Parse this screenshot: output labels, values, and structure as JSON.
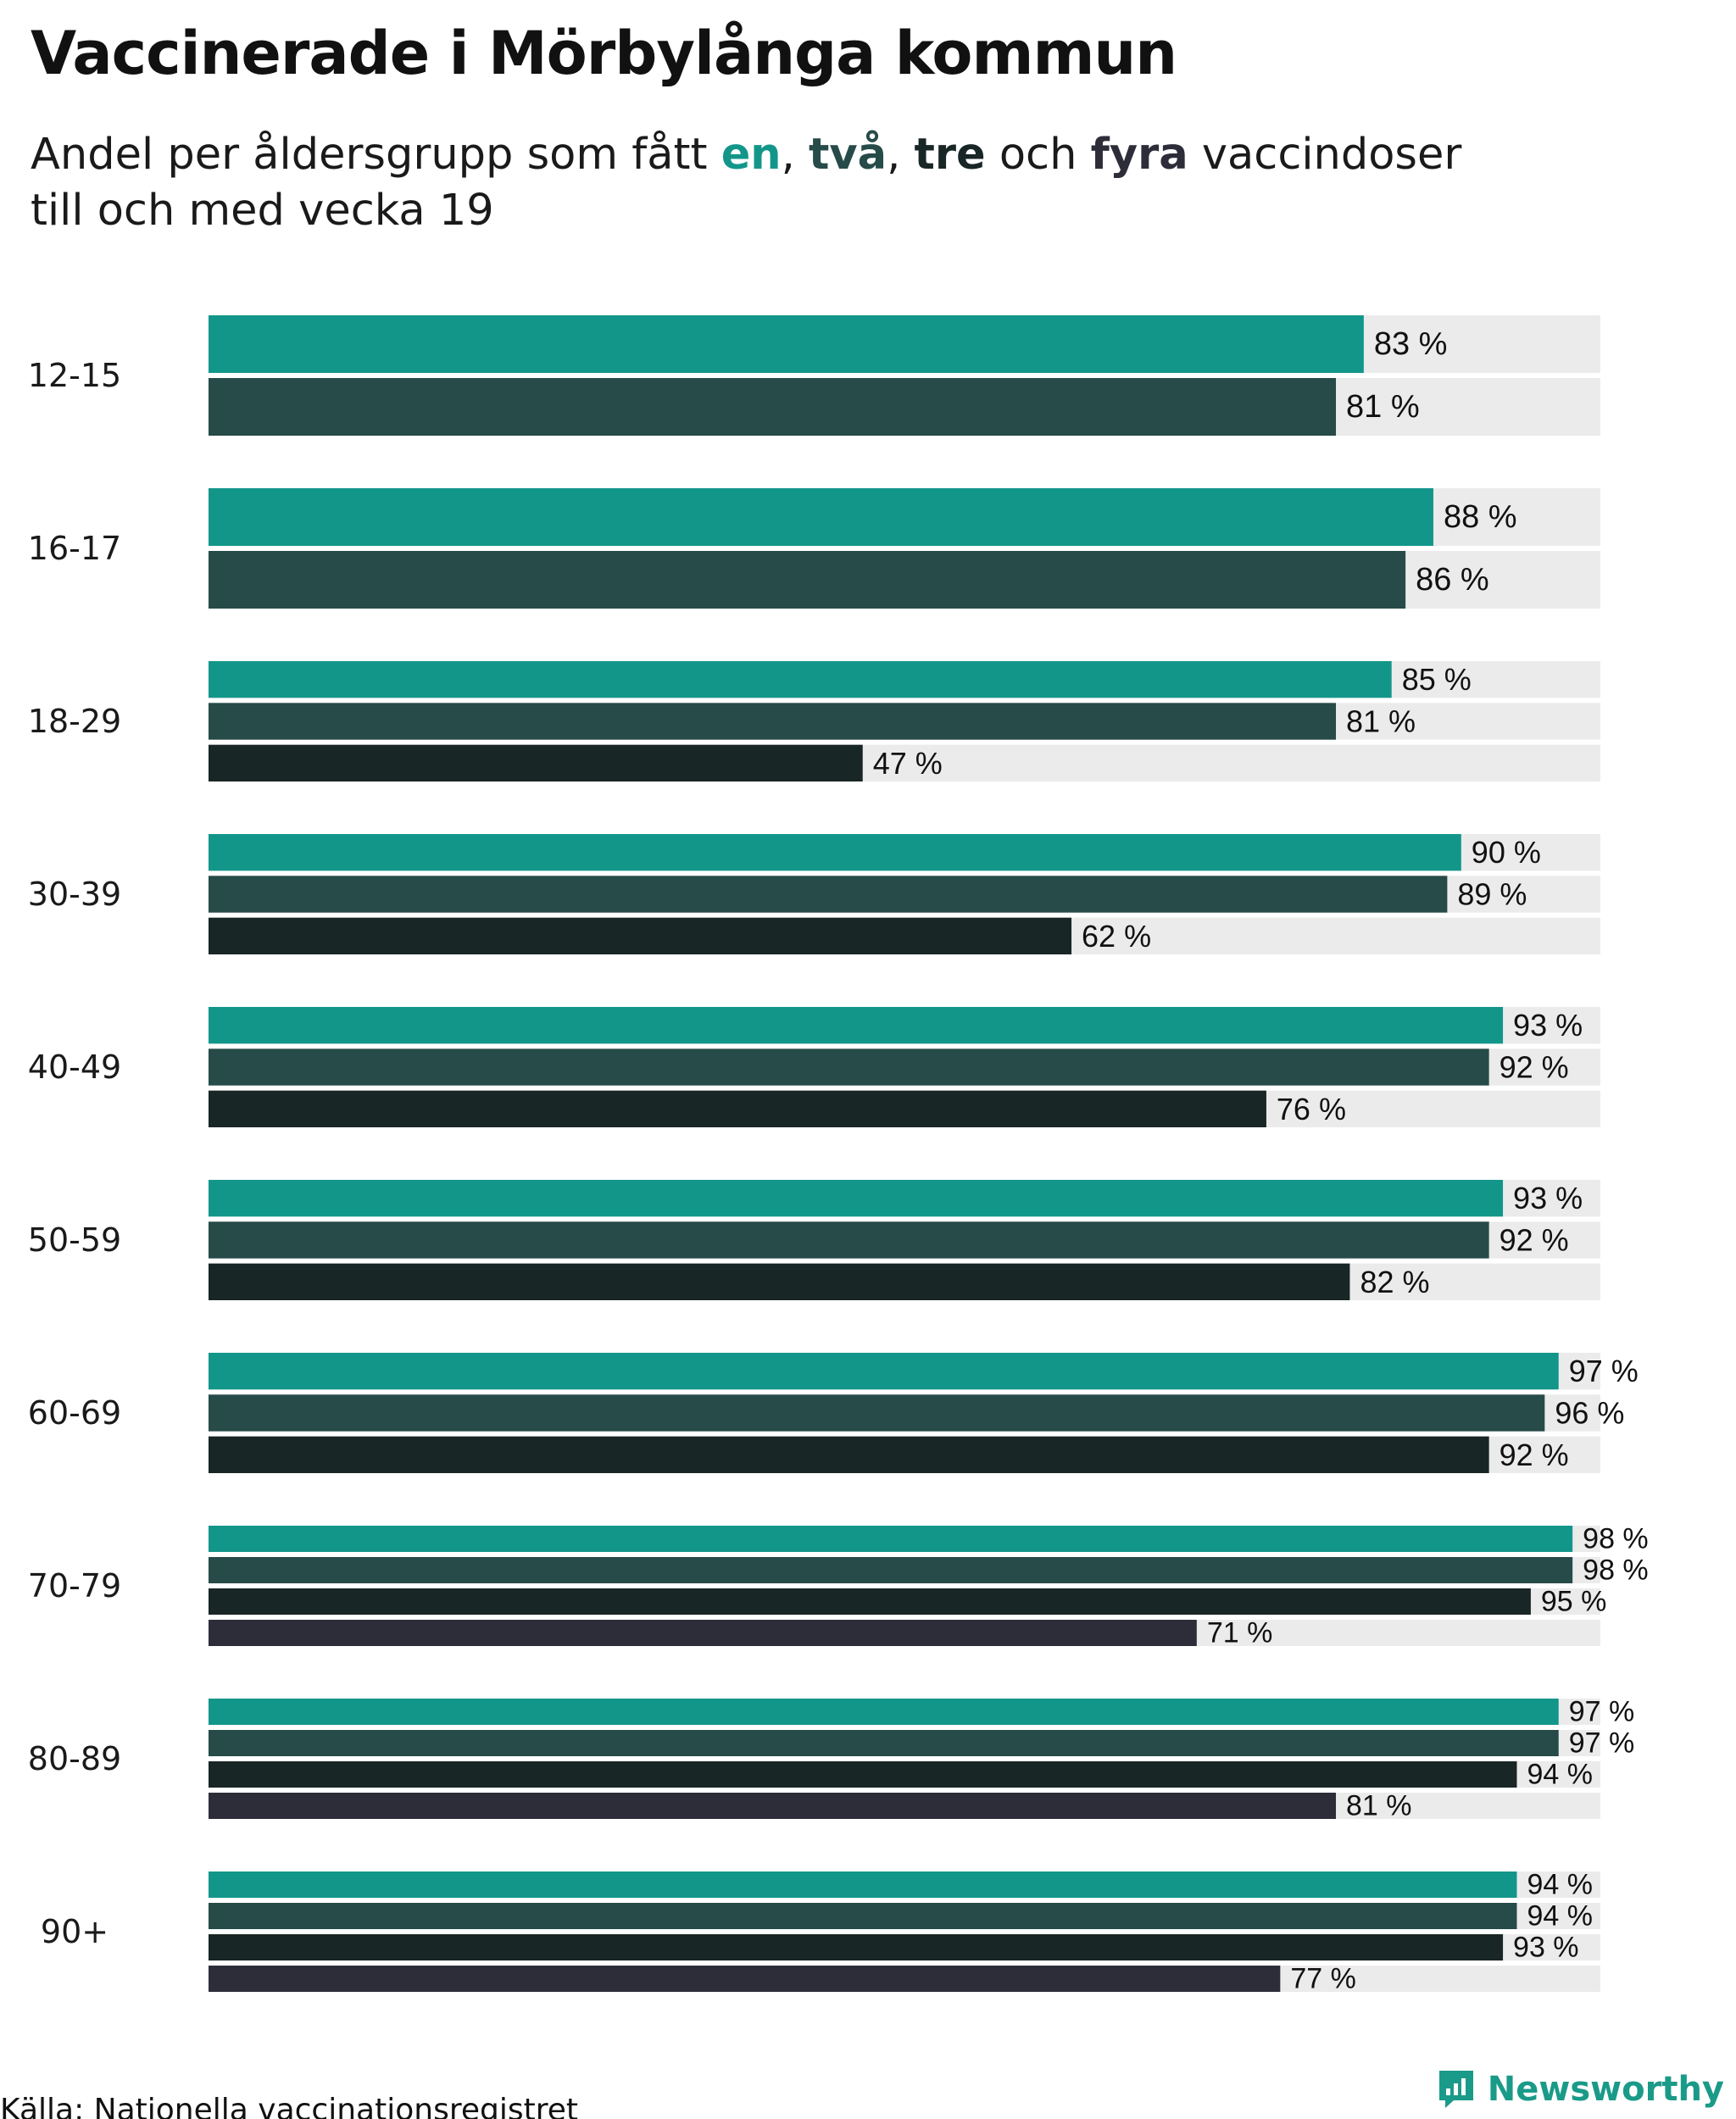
{
  "chart_data": {
    "type": "bar",
    "orientation": "horizontal",
    "title": "Vaccinerade i Mörbylånga kommun",
    "subtitle": {
      "prefix": "Andel per åldersgrupp som fått ",
      "words": [
        "en",
        "två",
        "tre",
        "fyra"
      ],
      "sep_comma": ", ",
      "sep_and": " och ",
      "line1_suffix": " vaccindoser",
      "line2": "till och med vecka 19"
    },
    "categories": [
      "12-15",
      "16-17",
      "18-29",
      "30-39",
      "40-49",
      "50-59",
      "60-69",
      "70-79",
      "80-89",
      "90+"
    ],
    "series": [
      {
        "key": "en",
        "color": "#13968a",
        "values": [
          83,
          88,
          85,
          90,
          93,
          93,
          97,
          98,
          97,
          94
        ]
      },
      {
        "key": "två",
        "color": "#264b48",
        "values": [
          81,
          86,
          81,
          89,
          92,
          92,
          96,
          98,
          97,
          94
        ]
      },
      {
        "key": "tre",
        "color": "#182625",
        "values": [
          null,
          null,
          47,
          62,
          76,
          82,
          92,
          95,
          94,
          93
        ]
      },
      {
        "key": "fyra",
        "color": "#2d2d3a",
        "values": [
          null,
          null,
          null,
          null,
          null,
          null,
          null,
          71,
          81,
          77
        ]
      }
    ],
    "value_suffix": " %",
    "xlim": [
      0,
      100
    ],
    "track_color": "#ebebeb",
    "grid": false,
    "legend": "inline in subtitle"
  },
  "source": "Källa: Nationella vaccinationsregistret",
  "brand": {
    "name": "Newsworthy",
    "color": "#1a9a88",
    "icon": "newsworthy-logo-icon"
  }
}
